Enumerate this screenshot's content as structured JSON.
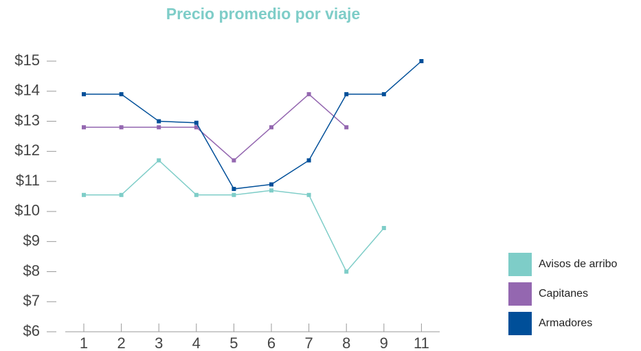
{
  "chart_data": {
    "type": "line",
    "title": "Precio promedio por viaje",
    "categories": [
      "1",
      "2",
      "3",
      "4",
      "5",
      "6",
      "7",
      "8",
      "9",
      "11"
    ],
    "series": [
      {
        "name": "Avisos de arribo",
        "color": "#7ecdc8",
        "values": [
          10.55,
          10.55,
          11.7,
          10.55,
          10.55,
          10.7,
          10.55,
          8.0,
          9.45,
          null
        ]
      },
      {
        "name": "Capitanes",
        "color": "#9467b0",
        "values": [
          12.8,
          12.8,
          12.8,
          12.8,
          11.7,
          12.8,
          13.9,
          12.8,
          null,
          null
        ]
      },
      {
        "name": "Armadores",
        "color": "#004f99",
        "values": [
          13.9,
          13.9,
          13.0,
          12.95,
          10.75,
          10.9,
          11.7,
          13.9,
          13.9,
          15
        ]
      }
    ],
    "ylim": [
      6,
      15
    ],
    "yticks": [
      {
        "value": 6,
        "label": "$6"
      },
      {
        "value": 7,
        "label": "$7"
      },
      {
        "value": 8,
        "label": "$8"
      },
      {
        "value": 9,
        "label": "$9"
      },
      {
        "value": 10,
        "label": "$10"
      },
      {
        "value": 11,
        "label": "$11"
      },
      {
        "value": 12,
        "label": "$12"
      },
      {
        "value": 13,
        "label": "$13"
      },
      {
        "value": 14,
        "label": "$14"
      },
      {
        "value": 15,
        "label": "$15"
      }
    ],
    "grid": false,
    "legend": "right"
  }
}
